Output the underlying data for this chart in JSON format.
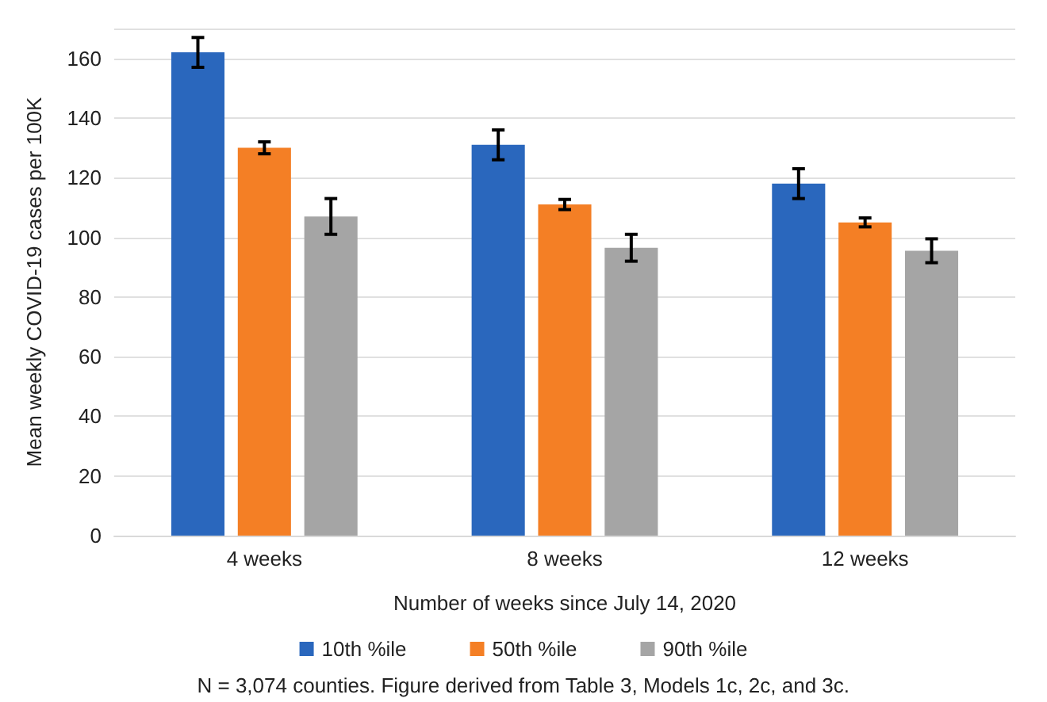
{
  "chart_data": {
    "type": "bar",
    "xlabel": "Number of weeks since July 14, 2020",
    "ylabel": "Mean weekly COVID-19 cases per 100K",
    "categories": [
      "4 weeks",
      "8 weeks",
      "12 weeks"
    ],
    "series": [
      {
        "name": "10th %ile",
        "color": "#2a67bd",
        "values": [
          162,
          131,
          118
        ],
        "errors": [
          5,
          5,
          5
        ]
      },
      {
        "name": "50th %ile",
        "color": "#f47f25",
        "values": [
          130,
          111,
          105
        ],
        "errors": [
          2,
          1.7,
          1.5
        ]
      },
      {
        "name": "90th %ile",
        "color": "#a5a5a5",
        "values": [
          107,
          96.5,
          95.5
        ],
        "errors": [
          6,
          4.5,
          4
        ]
      }
    ],
    "ylim": [
      0,
      170
    ],
    "yticks": [
      0,
      20,
      40,
      60,
      80,
      100,
      120,
      140,
      160,
      {
        "value": 170,
        "label": null
      }
    ],
    "grid": "y",
    "legend": "bottom",
    "annotations": [
      "N = 3,074 counties. Figure derived from Table 3, Models 1c, 2c, and 3c."
    ]
  }
}
